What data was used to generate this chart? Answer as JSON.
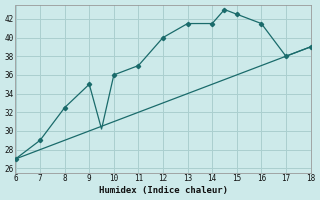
{
  "xlabel": "Humidex (Indice chaleur)",
  "bg_color": "#cdeaea",
  "line_color": "#1a6b6b",
  "grid_color": "#aacfcf",
  "xlim": [
    6,
    18
  ],
  "ylim": [
    25.5,
    43.5
  ],
  "xticks": [
    6,
    7,
    8,
    9,
    10,
    11,
    12,
    13,
    14,
    15,
    16,
    17,
    18
  ],
  "yticks": [
    26,
    28,
    30,
    32,
    34,
    36,
    38,
    40,
    42
  ],
  "curve1_x": [
    6,
    7,
    8,
    9,
    9.5,
    10,
    11,
    12,
    13,
    14,
    14.5,
    15,
    16,
    17,
    18
  ],
  "curve1_y": [
    27.0,
    29.0,
    32.5,
    35.0,
    30.2,
    36.0,
    37.0,
    40.0,
    41.5,
    41.5,
    43.0,
    42.5,
    41.5,
    38.0,
    39.0
  ],
  "markers_x": [
    6,
    7,
    8,
    9,
    10,
    11,
    12,
    13,
    14,
    14.5,
    15,
    16,
    17,
    18
  ],
  "markers_y": [
    27.0,
    29.0,
    32.5,
    35.0,
    36.0,
    37.0,
    40.0,
    41.5,
    41.5,
    43.0,
    42.5,
    41.5,
    38.0,
    39.0
  ],
  "line2_x": [
    6,
    18
  ],
  "line2_y": [
    27.0,
    39.0
  ]
}
